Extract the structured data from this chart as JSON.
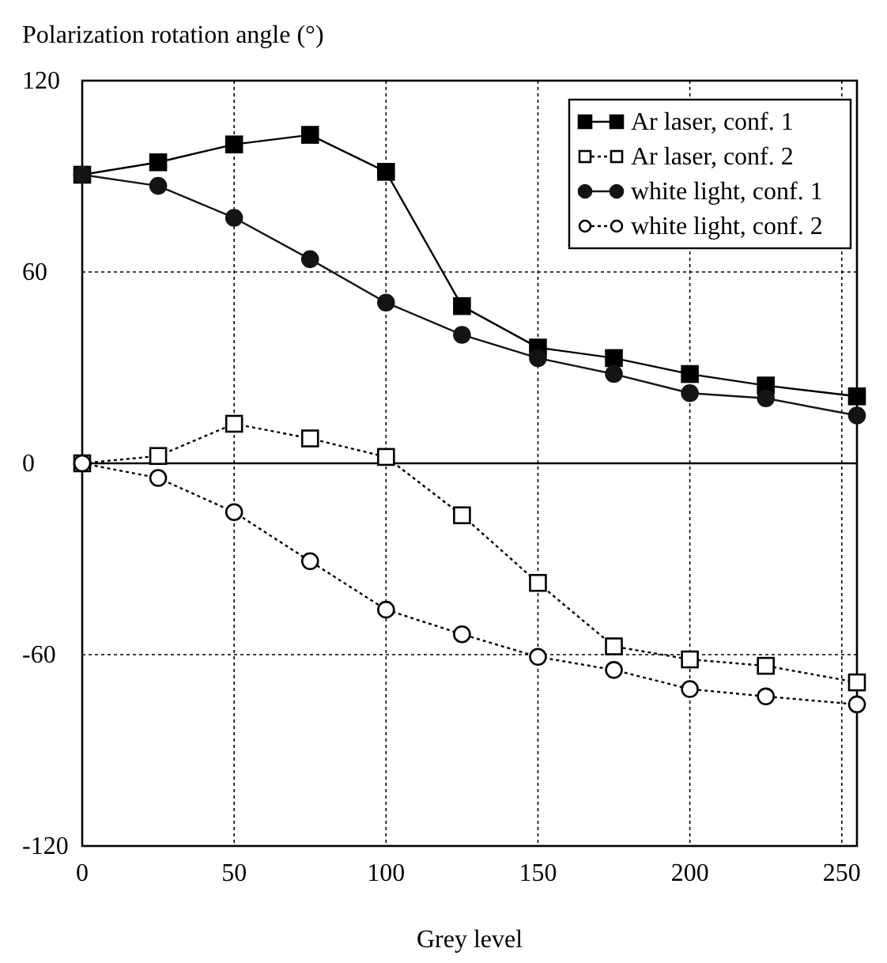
{
  "chart_data": {
    "type": "line",
    "ylabel": "Polarization rotation angle (°)",
    "xlabel": "Grey level",
    "x": [
      0,
      25,
      50,
      75,
      100,
      125,
      150,
      175,
      200,
      225,
      255
    ],
    "xlim": [
      0,
      255
    ],
    "xticks": [
      0,
      50,
      100,
      150,
      200,
      250
    ],
    "ylim": [
      -120,
      120
    ],
    "yticks": [
      -120,
      -60,
      0,
      60,
      120
    ],
    "grid": true,
    "legend": "top right",
    "ref_lines": [
      {
        "axis": "y",
        "value": 0,
        "line_style": "solid"
      }
    ],
    "series": [
      {
        "name": "Ar laser, conf. 1",
        "color": "#000000",
        "marker": "square",
        "line_style": "solid",
        "values": [
          90.5,
          94.4,
          100,
          103,
          91.4,
          49.3,
          36.3,
          33,
          28,
          24.4,
          21
        ]
      },
      {
        "name": "Ar laser, conf. 2",
        "color": "#000000",
        "marker": "square",
        "line_style": "dotted",
        "values": [
          0,
          2.3,
          12.4,
          7.8,
          2,
          -16.3,
          -37.5,
          -57.4,
          -61.5,
          -63.5,
          -68.7
        ]
      },
      {
        "name": "white light, conf. 1",
        "color": "#141414",
        "marker": "circle",
        "line_style": "solid",
        "values": [
          90.5,
          87,
          77,
          64,
          50.4,
          40.3,
          33,
          28,
          22,
          20.4,
          15
        ]
      },
      {
        "name": "white light, conf. 2",
        "color": "#000000",
        "marker": "circle",
        "line_style": "dotted",
        "values": [
          0,
          -4.6,
          -15.3,
          -30.7,
          -45.9,
          -53.6,
          -60.7,
          -64.8,
          -70.8,
          -73.1,
          -75.6
        ]
      }
    ]
  }
}
